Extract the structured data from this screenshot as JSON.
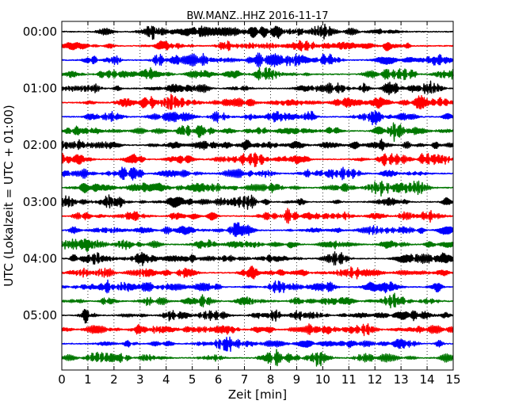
{
  "chart_data": {
    "type": "line",
    "subtype": "seismic-dayplot",
    "title": "BW.MANZ..HHZ 2016-11-17",
    "xlabel": "Zeit  [min]",
    "ylabel": "UTC (Lokalzeit = UTC + 01:00)",
    "xlim": [
      0,
      15
    ],
    "xticks": [
      "0",
      "1",
      "2",
      "3",
      "4",
      "5",
      "6",
      "7",
      "8",
      "9",
      "10",
      "11",
      "12",
      "13",
      "14",
      "15"
    ],
    "yticks": [
      "00:00",
      "01:00",
      "02:00",
      "03:00",
      "04:00",
      "05:00"
    ],
    "ytick_trace_index": [
      0,
      4,
      8,
      12,
      16,
      20
    ],
    "trace_minutes": 15,
    "trace_count": 24,
    "x_gridlines": "dotted, every 1 min",
    "series_color_cycle": [
      "#000000",
      "#ff0000",
      "#0000ff",
      "#007700"
    ]
  }
}
